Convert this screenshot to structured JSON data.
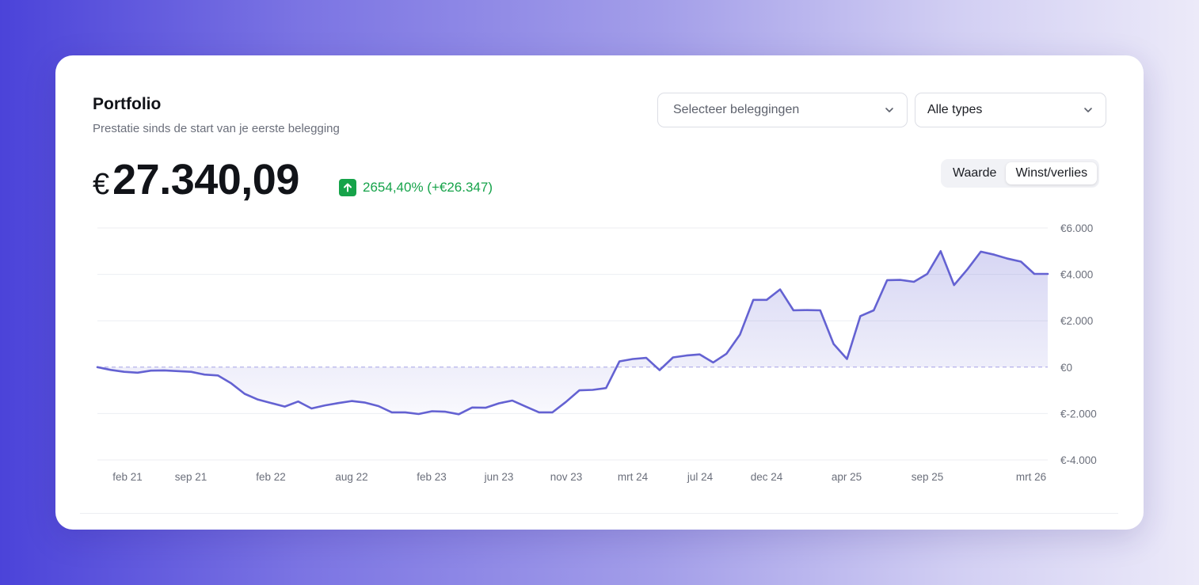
{
  "header": {
    "title": "Portfolio",
    "subtitle": "Prestatie sinds de start van je eerste belegging"
  },
  "filters": {
    "investments_placeholder": "Selecteer beleggingen",
    "type_value": "Alle types"
  },
  "summary": {
    "currency": "€",
    "total_value": "27.340,09",
    "change_text": "2654,40% (+€26.347)"
  },
  "view_toggle": {
    "options": [
      "Waarde",
      "Winst/verlies"
    ],
    "active": "Winst/verlies"
  },
  "colors": {
    "accent": "#6462d2",
    "positive": "#16a34a"
  },
  "icons": {
    "dropdown": "chevron-down-icon",
    "trend": "arrow-up-icon"
  },
  "chart_data": {
    "type": "area",
    "x_tick_labels": [
      "feb 21",
      "sep 21",
      "feb 22",
      "aug 22",
      "feb 23",
      "jun 23",
      "nov 23",
      "mrt 24",
      "jul 24",
      "dec 24",
      "apr 25",
      "sep 25",
      "mrt 26"
    ],
    "y_tick_labels": [
      "€6.000",
      "€4.000",
      "€2.000",
      "€0",
      "€-2.000",
      "€-4.000"
    ],
    "y_ticks": [
      6000,
      4000,
      2000,
      0,
      -2000,
      -4000
    ],
    "ylim": [
      -4000,
      6000
    ],
    "baseline": 0,
    "grid": true,
    "values": [
      0,
      -120,
      -200,
      -240,
      -150,
      -140,
      -170,
      -200,
      -320,
      -360,
      -700,
      -1150,
      -1400,
      -1550,
      -1700,
      -1480,
      -1780,
      -1650,
      -1550,
      -1460,
      -1530,
      -1680,
      -1950,
      -1950,
      -2020,
      -1900,
      -1920,
      -2030,
      -1740,
      -1750,
      -1560,
      -1440,
      -1700,
      -1950,
      -1950,
      -1500,
      -1000,
      -980,
      -900,
      250,
      350,
      400,
      -130,
      420,
      500,
      550,
      200,
      580,
      1400,
      2900,
      2900,
      3350,
      2450,
      2460,
      2450,
      1000,
      350,
      2200,
      2450,
      3750,
      3760,
      3680,
      4020,
      5000,
      3540,
      4220,
      4980,
      4850,
      4680,
      4550,
      4020,
      4020
    ]
  }
}
